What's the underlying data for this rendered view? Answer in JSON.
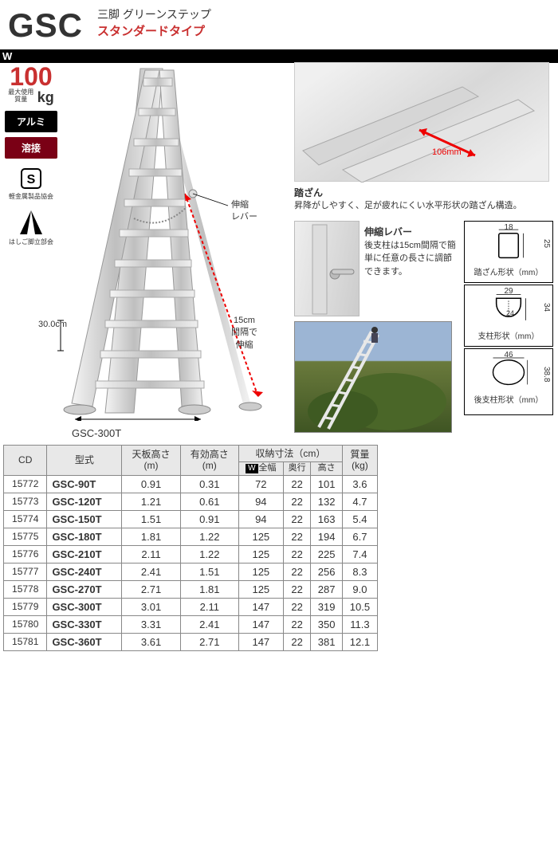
{
  "header": {
    "code": "GSC",
    "title": "三脚 グリーンステップ",
    "subtitle": "スタンダードタイプ"
  },
  "load": {
    "value": "100",
    "unit": "kg",
    "label": "最大使用\n質量"
  },
  "tags": {
    "material": "アルミ",
    "method": "溶接"
  },
  "certs": {
    "a": "軽金属製品協会",
    "b": "はしご脚立部会"
  },
  "main": {
    "model_label": "GSC-300T",
    "step_height": "30.0cm",
    "w_label": "W",
    "lever_label": "伸縮\nレバー",
    "lever_note": "15cm\n間隔で\n伸縮"
  },
  "detail_step": {
    "dim": "106mm",
    "title": "踏ざん",
    "text": "昇降がしやすく、足が疲れにくい水平形状の踏ざん構造。"
  },
  "detail_lever": {
    "title": "伸縮レバー",
    "text": "後支柱は15cm間隔で簡単に任意の長さに調節できます。"
  },
  "shapes": {
    "step": {
      "w": "18",
      "h": "25",
      "caption": "踏ざん形状（mm）"
    },
    "post": {
      "w": "29",
      "h": "34",
      "h2": "24",
      "caption": "支柱形状（mm）"
    },
    "rear": {
      "w": "46",
      "h": "38.8",
      "caption": "後支柱形状（mm）"
    }
  },
  "table": {
    "headers": {
      "cd": "CD",
      "model": "型式",
      "top_h": "天板高さ\n(m)",
      "eff_h": "有効高さ\n(m)",
      "stow": "収納寸法（cm）",
      "w": "全幅",
      "d": "奥行",
      "h": "高さ",
      "mass": "質量\n(kg)"
    },
    "rows": [
      {
        "cd": "15772",
        "model": "GSC-90T",
        "th": "0.91",
        "eh": "0.31",
        "w": "72",
        "d": "22",
        "h": "101",
        "m": "3.6"
      },
      {
        "cd": "15773",
        "model": "GSC-120T",
        "th": "1.21",
        "eh": "0.61",
        "w": "94",
        "d": "22",
        "h": "132",
        "m": "4.7"
      },
      {
        "cd": "15774",
        "model": "GSC-150T",
        "th": "1.51",
        "eh": "0.91",
        "w": "94",
        "d": "22",
        "h": "163",
        "m": "5.4"
      },
      {
        "cd": "15775",
        "model": "GSC-180T",
        "th": "1.81",
        "eh": "1.22",
        "w": "125",
        "d": "22",
        "h": "194",
        "m": "6.7"
      },
      {
        "cd": "15776",
        "model": "GSC-210T",
        "th": "2.11",
        "eh": "1.22",
        "w": "125",
        "d": "22",
        "h": "225",
        "m": "7.4"
      },
      {
        "cd": "15777",
        "model": "GSC-240T",
        "th": "2.41",
        "eh": "1.51",
        "w": "125",
        "d": "22",
        "h": "256",
        "m": "8.3"
      },
      {
        "cd": "15778",
        "model": "GSC-270T",
        "th": "2.71",
        "eh": "1.81",
        "w": "125",
        "d": "22",
        "h": "287",
        "m": "9.0"
      },
      {
        "cd": "15779",
        "model": "GSC-300T",
        "th": "3.01",
        "eh": "2.11",
        "w": "147",
        "d": "22",
        "h": "319",
        "m": "10.5"
      },
      {
        "cd": "15780",
        "model": "GSC-330T",
        "th": "3.31",
        "eh": "2.41",
        "w": "147",
        "d": "22",
        "h": "350",
        "m": "11.3"
      },
      {
        "cd": "15781",
        "model": "GSC-360T",
        "th": "3.61",
        "eh": "2.71",
        "w": "147",
        "d": "22",
        "h": "381",
        "m": "12.1"
      }
    ]
  },
  "colors": {
    "accent": "#c93030",
    "dark_red": "#7a0015"
  }
}
